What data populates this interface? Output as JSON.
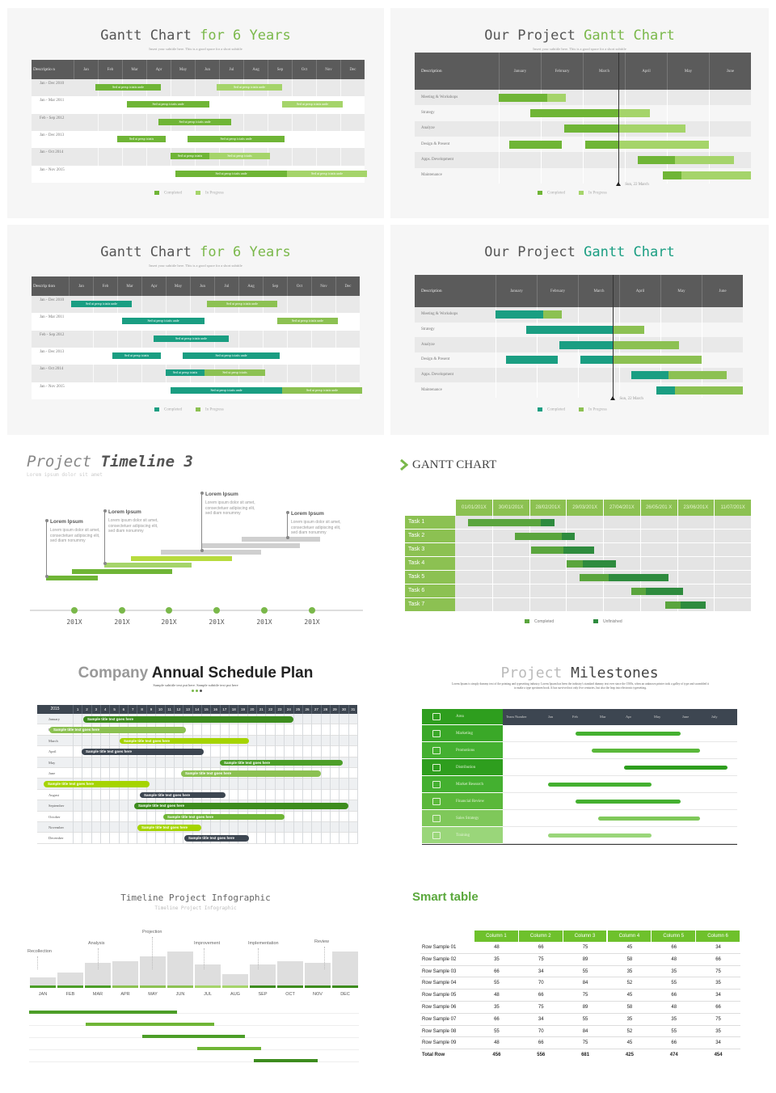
{
  "panel1": {
    "title_a": "Gantt Chart ",
    "title_b": "for 6 Years",
    "subtitle": "Insert your subtitle here. This is a good space for a short subtitle",
    "header_first": "Descriptio n",
    "months": [
      "Jan",
      "Feb",
      "Mar",
      "Apr",
      "May",
      "Jun",
      "Jul",
      "Aug",
      "Sep",
      "Oct",
      "Nov",
      "Dec"
    ],
    "rows": [
      "Jan - Dec 2010",
      "Jan - Mar 2011",
      "Feb - Sep 2012",
      "Jan - Dec 2013",
      "Jan - Oct 2014",
      "Jan - Nov 2015"
    ],
    "bar_text": "Sed ut persp iciatis unde",
    "bar_text_short": "Sed ut persp iciatis",
    "legend_completed": "Completed",
    "legend_progress": "In Progress",
    "colors": {
      "dark": "#6fb536",
      "light": "#a5d46a",
      "header": "#5b5b5b"
    }
  },
  "panel2": {
    "title_a": "Our Project ",
    "title_b": "Gantt Chart",
    "subtitle": "Insert your subtitle here. This is a good space for a short subtitle",
    "header_first": "Description",
    "months": [
      "January",
      "February",
      "March",
      "April",
      "May",
      "June"
    ],
    "rows": [
      "Meeting & Workshops",
      "Strategy",
      "Analyze",
      "Design & Present",
      "Apps. Development",
      "Maintenance"
    ],
    "marker": "Sun, 22 March",
    "legend_completed": "Completed",
    "legend_progress": "In Progress"
  },
  "panel3": {
    "title_a": "Gantt Chart ",
    "title_b": "for 6 Years",
    "subtitle": "Insert your subtitle here. This is a good space for a short subtitle",
    "header_first": "Descrip tion",
    "months": [
      "Jan",
      "Feb",
      "Mar",
      "Apr",
      "May",
      "Jun",
      "Jul",
      "Aug",
      "Sep",
      "Oct",
      "Nov",
      "Dec"
    ],
    "rows": [
      "Jan - Dec 2010",
      "Jan - Mar 2011",
      "Feb - Sep 2012",
      "Jan - Dec 2013",
      "Jan - Oct 2014",
      "Jan - Nov 2015"
    ],
    "bar_text": "Sed ut persp iciatis unde",
    "bar_text_short": "Sed ut persp iciatis",
    "legend_completed": "Completed",
    "legend_progress": "In Progress",
    "colors": {
      "dark": "#1a9e82",
      "light": "#8cc152"
    }
  },
  "panel4": {
    "title_a": "Our Project ",
    "title_b": "Gantt Chart",
    "header_first": "Description",
    "months": [
      "January",
      "February",
      "March",
      "April",
      "May",
      "June"
    ],
    "rows": [
      "Meeting & Workshops",
      "Strategy",
      "Analyze",
      "Design & Present",
      "Apps. Development",
      "Maintenance"
    ],
    "marker": "Sun, 22 March",
    "legend_completed": "Completed",
    "legend_progress": "In Progress"
  },
  "panel5": {
    "title_a": "Project ",
    "title_b": "Timeline 3",
    "subtitle": "Lorem ipsum dolor sit amet",
    "callouts": [
      {
        "title": "Lorem Ipsum",
        "body": "Lorem ipsum dolor sit amet, consectetuer adipiscing elit, sed diam nonummy"
      },
      {
        "title": "Lorem Ipsum",
        "body": "Lorem ipsum dolor sit amet, consectetuer adipiscing elit, sed diam nonummy"
      },
      {
        "title": "Lorem Ipsum",
        "body": "Lorem ipsum dolor sit amet, consectetuer adipiscing elit, sed diam nonummy"
      },
      {
        "title": "Lorem Ipsum",
        "body": "Lorem ipsum dolor sit amet, consectetuer adipiscing elit, sed diam nonummy"
      }
    ],
    "years": [
      "201X",
      "201X",
      "201X",
      "201X",
      "201X",
      "201X"
    ]
  },
  "panel6": {
    "title": "GANTT CHART",
    "dates": [
      "01/01/201X",
      "30/01/201X",
      "28/02/201X",
      "29/03/201X",
      "27/04/201X",
      "26/05/201 X",
      "23/06/201X",
      "11/07/201X"
    ],
    "tasks": [
      "Task 1",
      "Task 2",
      "Task 3",
      "Task 4",
      "Task 5",
      "Task 6",
      "Task 7"
    ],
    "legend_completed": "Completed",
    "legend_unfinished": "Unfinished"
  },
  "panel7": {
    "title_a": "Company ",
    "title_b": "Annual Schedule Plan",
    "subtitle": "Sample subtitle text put here. Sample subtitle text put here",
    "year": "2015",
    "days": [
      "1",
      "2",
      "3",
      "4",
      "5",
      "6",
      "7",
      "8",
      "9",
      "10",
      "11",
      "12",
      "13",
      "14",
      "15",
      "16",
      "17",
      "18",
      "19",
      "20",
      "21",
      "22",
      "23",
      "24",
      "25",
      "26",
      "27",
      "28",
      "29",
      "30",
      "31"
    ],
    "months": [
      "January",
      "February",
      "March",
      "April",
      "May",
      "June",
      "July",
      "August",
      "September",
      "October",
      "November",
      "December"
    ],
    "bar_text": "Sample title text goes here",
    "bar_text_short": "Sample title text goes here"
  },
  "panel8": {
    "title_a": "Project ",
    "title_b": "Milestones",
    "desc": "Lorem Ipsum is simply dummy text of the printing and typesetting industry. Lorem Ipsum has been the industry's standard dummy text ever since the 1500s, when an unknown printer took a galley of type and scrambled it to make a type specimen book. It has survived not only five centuries, but also the leap into electronic typesetting.",
    "header": [
      "Team Number",
      "Jan",
      "Feb",
      "Mar",
      "Apr",
      "May",
      "June",
      "July"
    ],
    "rows": [
      "Area",
      "Marketing",
      "Promotions",
      "Distribution",
      "Market Research",
      "Financial Review",
      "Sales Strategy",
      "Training"
    ]
  },
  "panel9": {
    "title": "Timeline Project  Infographic",
    "subtitle": "Timeline Project  Infographic",
    "months": [
      "JAN",
      "FEB",
      "MAR",
      "APR",
      "MAY",
      "JUN",
      "JUL",
      "AUG",
      "SEP",
      "OCT",
      "NOV",
      "DEC"
    ],
    "labels": [
      "Recollection",
      "Analysis",
      "Projection",
      "Improvement",
      "Implementation",
      "Review"
    ]
  },
  "panel10": {
    "title": "Smart table",
    "columns": [
      "",
      "Column 1",
      "Column 2",
      "Column 3",
      "Column 4",
      "Column 5",
      "Column 6"
    ],
    "rows": [
      [
        "Row Sample 01",
        "48",
        "66",
        "75",
        "45",
        "66",
        "34"
      ],
      [
        "Row Sample 02",
        "35",
        "75",
        "89",
        "58",
        "48",
        "66"
      ],
      [
        "Row Sample 03",
        "66",
        "34",
        "55",
        "35",
        "35",
        "75"
      ],
      [
        "Row Sample 04",
        "55",
        "70",
        "84",
        "52",
        "55",
        "35"
      ],
      [
        "Row Sample 05",
        "48",
        "66",
        "75",
        "45",
        "66",
        "34"
      ],
      [
        "Row Sample 06",
        "35",
        "75",
        "89",
        "58",
        "48",
        "66"
      ],
      [
        "Row Sample 07",
        "66",
        "34",
        "55",
        "35",
        "35",
        "75"
      ],
      [
        "Row Sample 08",
        "55",
        "70",
        "84",
        "52",
        "55",
        "35"
      ],
      [
        "Row Sample 09",
        "48",
        "66",
        "75",
        "45",
        "66",
        "34"
      ]
    ],
    "total": [
      "Total Row",
      "456",
      "556",
      "681",
      "425",
      "474",
      "454"
    ]
  }
}
